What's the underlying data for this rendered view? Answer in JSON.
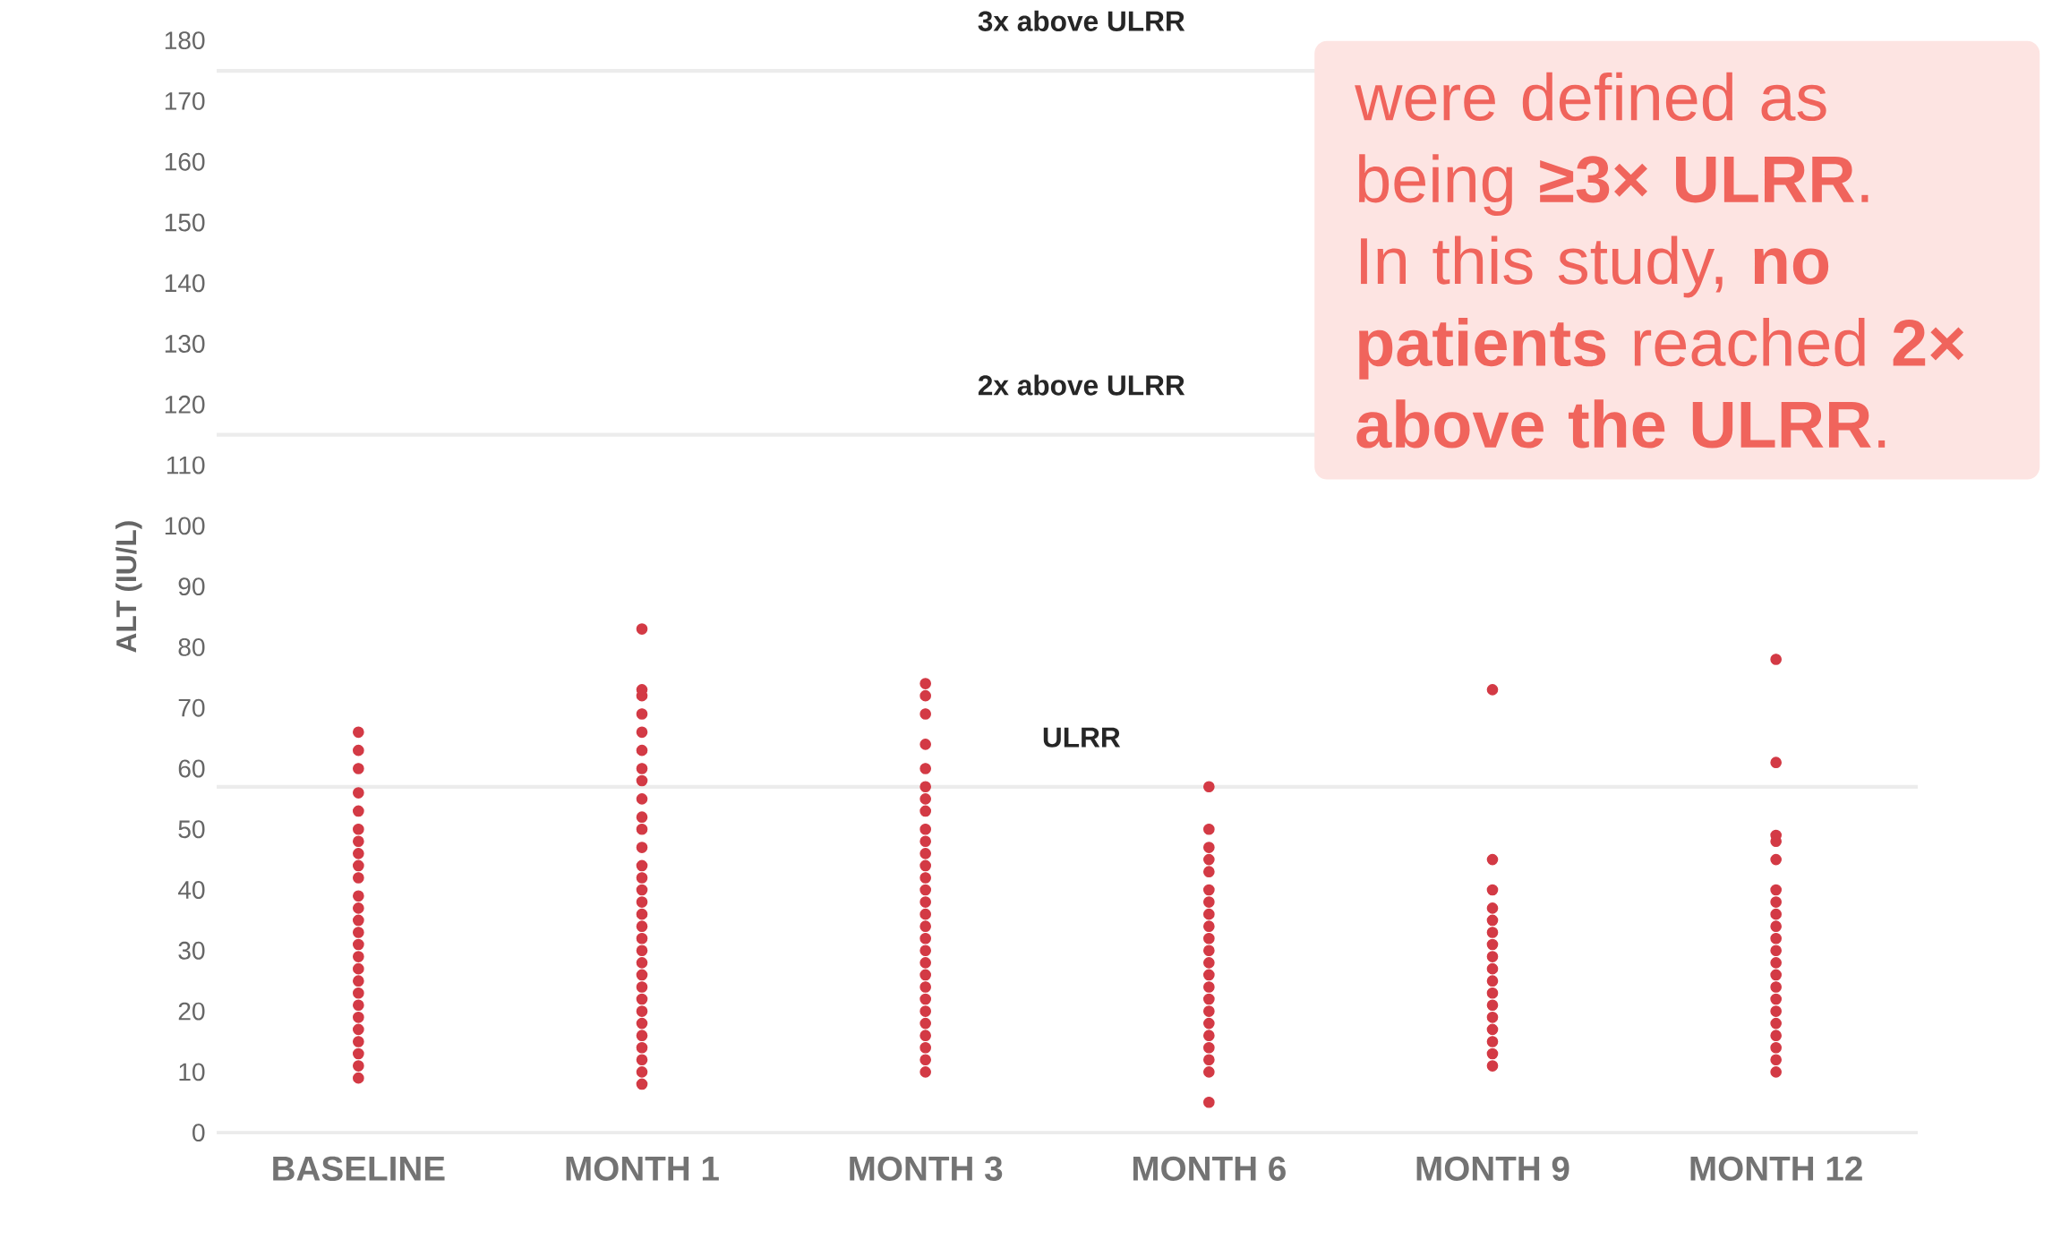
{
  "chart_data": {
    "type": "scatter",
    "ylabel": "ALT (IU/L)",
    "categories": [
      "BASELINE",
      "MONTH 1",
      "MONTH 3",
      "MONTH 6",
      "MONTH 9",
      "MONTH 12"
    ],
    "ylim": [
      0,
      180
    ],
    "yticks": [
      0,
      10,
      20,
      30,
      40,
      50,
      60,
      70,
      80,
      90,
      100,
      110,
      120,
      130,
      140,
      150,
      160,
      170,
      180
    ],
    "marker": "circle",
    "series": [
      {
        "color": "#d33a45",
        "x": [
          "BASELINE",
          "BASELINE",
          "BASELINE",
          "BASELINE",
          "BASELINE",
          "BASELINE",
          "BASELINE",
          "BASELINE",
          "BASELINE",
          "BASELINE",
          "BASELINE",
          "BASELINE",
          "BASELINE",
          "BASELINE",
          "BASELINE",
          "BASELINE",
          "BASELINE",
          "BASELINE",
          "BASELINE",
          "BASELINE",
          "BASELINE",
          "BASELINE",
          "BASELINE",
          "BASELINE",
          "BASELINE",
          "BASELINE"
        ],
        "values": [
          9,
          11,
          13,
          15,
          17,
          19,
          21,
          23,
          25,
          27,
          29,
          31,
          33,
          35,
          37,
          39,
          42,
          44,
          46,
          48,
          50,
          53,
          56,
          60,
          63,
          66
        ]
      },
      {
        "color": "#d33a45",
        "x": [
          "MONTH 1",
          "MONTH 1",
          "MONTH 1",
          "MONTH 1",
          "MONTH 1",
          "MONTH 1",
          "MONTH 1",
          "MONTH 1",
          "MONTH 1",
          "MONTH 1",
          "MONTH 1",
          "MONTH 1",
          "MONTH 1",
          "MONTH 1",
          "MONTH 1",
          "MONTH 1",
          "MONTH 1",
          "MONTH 1",
          "MONTH 1",
          "MONTH 1",
          "MONTH 1",
          "MONTH 1",
          "MONTH 1",
          "MONTH 1",
          "MONTH 1",
          "MONTH 1",
          "MONTH 1",
          "MONTH 1",
          "MONTH 1",
          "MONTH 1",
          "MONTH 1"
        ],
        "values": [
          8,
          10,
          12,
          14,
          16,
          18,
          20,
          22,
          24,
          26,
          28,
          30,
          32,
          34,
          36,
          38,
          40,
          42,
          44,
          47,
          50,
          52,
          55,
          58,
          60,
          63,
          66,
          69,
          72,
          73,
          83
        ]
      },
      {
        "color": "#d33a45",
        "x": [
          "MONTH 3",
          "MONTH 3",
          "MONTH 3",
          "MONTH 3",
          "MONTH 3",
          "MONTH 3",
          "MONTH 3",
          "MONTH 3",
          "MONTH 3",
          "MONTH 3",
          "MONTH 3",
          "MONTH 3",
          "MONTH 3",
          "MONTH 3",
          "MONTH 3",
          "MONTH 3",
          "MONTH 3",
          "MONTH 3",
          "MONTH 3",
          "MONTH 3",
          "MONTH 3",
          "MONTH 3",
          "MONTH 3",
          "MONTH 3",
          "MONTH 3",
          "MONTH 3",
          "MONTH 3",
          "MONTH 3",
          "MONTH 3"
        ],
        "values": [
          10,
          12,
          14,
          16,
          18,
          20,
          22,
          24,
          26,
          28,
          30,
          32,
          34,
          36,
          38,
          40,
          42,
          44,
          46,
          48,
          50,
          53,
          55,
          57,
          60,
          64,
          69,
          72,
          74
        ]
      },
      {
        "color": "#d33a45",
        "x": [
          "MONTH 6",
          "MONTH 6",
          "MONTH 6",
          "MONTH 6",
          "MONTH 6",
          "MONTH 6",
          "MONTH 6",
          "MONTH 6",
          "MONTH 6",
          "MONTH 6",
          "MONTH 6",
          "MONTH 6",
          "MONTH 6",
          "MONTH 6",
          "MONTH 6",
          "MONTH 6",
          "MONTH 6",
          "MONTH 6",
          "MONTH 6",
          "MONTH 6",
          "MONTH 6",
          "MONTH 6"
        ],
        "values": [
          5,
          10,
          12,
          14,
          16,
          18,
          20,
          22,
          24,
          26,
          28,
          30,
          32,
          34,
          36,
          38,
          40,
          43,
          45,
          47,
          50,
          57
        ]
      },
      {
        "color": "#d33a45",
        "x": [
          "MONTH 9",
          "MONTH 9",
          "MONTH 9",
          "MONTH 9",
          "MONTH 9",
          "MONTH 9",
          "MONTH 9",
          "MONTH 9",
          "MONTH 9",
          "MONTH 9",
          "MONTH 9",
          "MONTH 9",
          "MONTH 9",
          "MONTH 9",
          "MONTH 9",
          "MONTH 9",
          "MONTH 9"
        ],
        "values": [
          11,
          13,
          15,
          17,
          19,
          21,
          23,
          25,
          27,
          29,
          31,
          33,
          35,
          37,
          40,
          45,
          73
        ]
      },
      {
        "color": "#d33a45",
        "x": [
          "MONTH 12",
          "MONTH 12",
          "MONTH 12",
          "MONTH 12",
          "MONTH 12",
          "MONTH 12",
          "MONTH 12",
          "MONTH 12",
          "MONTH 12",
          "MONTH 12",
          "MONTH 12",
          "MONTH 12",
          "MONTH 12",
          "MONTH 12",
          "MONTH 12",
          "MONTH 12",
          "MONTH 12",
          "MONTH 12",
          "MONTH 12",
          "MONTH 12",
          "MONTH 12"
        ],
        "values": [
          10,
          12,
          14,
          16,
          18,
          20,
          22,
          24,
          26,
          28,
          30,
          32,
          34,
          36,
          38,
          40,
          45,
          48,
          49,
          61,
          78
        ]
      }
    ],
    "ref_lines": [
      {
        "axis": "y",
        "value": 57,
        "label": "ULRR",
        "color": "#ececec"
      },
      {
        "axis": "y",
        "value": 115,
        "label": "2x above ULRR",
        "color": "#ececec"
      },
      {
        "axis": "y",
        "value": 175,
        "label": "3x above ULRR",
        "color": "#ececec"
      }
    ],
    "annotations": [
      "were defined as being **≥3× ULRR**. In this study, **no patients** reached **2× above the ULRR**."
    ]
  }
}
